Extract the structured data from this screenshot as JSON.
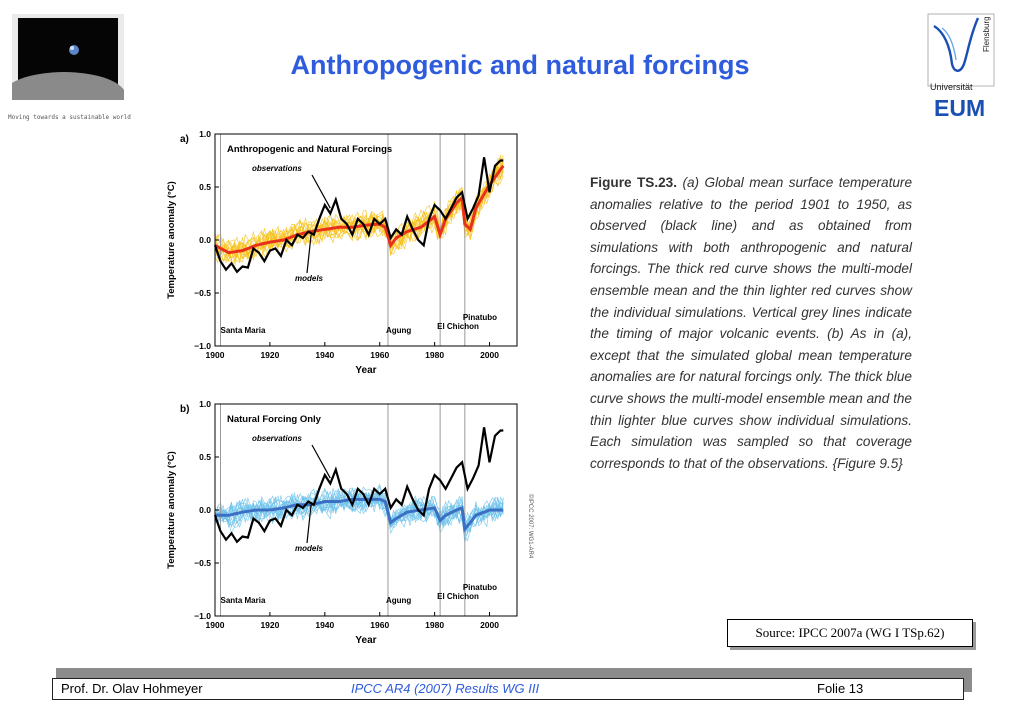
{
  "header": {
    "title": "Anthropogenic and natural forcings",
    "tagline": "Moving towards a sustainable world",
    "logo_text_1": "Universität",
    "logo_text_2": "Flensburg",
    "logo_text_3": "EUM"
  },
  "caption": {
    "lead": "Figure TS.23.",
    "body": " (a) Global mean surface temperature anomalies relative to the period 1901 to 1950, as observed (black line) and as obtained from simulations with both anthropogenic and natural forcings. The thick red curve shows the multi-model ensemble mean and the thin lighter red curves show the individual simulations. Vertical grey lines indicate the timing of major volcanic events. (b) As in (a), except that the simulated global mean temperature anomalies are for natural forcings only. The thick blue curve shows the multi-model ensemble mean and the thin lighter blue curves show individual simulations. Each simulation was sampled so that coverage corresponds to that of the observations. {Figure 9.5}"
  },
  "source": "Source: IPCC 2007a (WG I TSp.62)",
  "footer": {
    "left": "Prof. Dr. Olav Hohmeyer",
    "middle": "IPCC AR4 (2007) Results WG III",
    "right": "Folie 13"
  },
  "colors": {
    "title": "#2e5cdc",
    "observations": "#000000",
    "anthro_mean": "#e8311a",
    "anthro_models": "#f6c21c",
    "natural_mean": "#3a6fc4",
    "natural_models": "#6ec2ea",
    "volcano_line": "#9a9a9a"
  },
  "chart_data": [
    {
      "type": "line",
      "panel_label": "a)",
      "title": "Anthropogenic and Natural Forcings",
      "xlabel": "Year",
      "ylabel": "Temperature anomaly (°C)",
      "xlim": [
        1900,
        2010
      ],
      "ylim": [
        -1.0,
        1.0
      ],
      "xticks": [
        "1900",
        "1920",
        "1940",
        "1960",
        "1980",
        "2000"
      ],
      "yticks": [
        "1.0",
        "0.5",
        "0.0",
        "−0.5",
        "−1.0"
      ],
      "annotations": [
        "observations",
        "models"
      ],
      "volcanoes": [
        {
          "name": "Santa Maria",
          "year": 1902
        },
        {
          "name": "Agung",
          "year": 1963
        },
        {
          "name": "El Chichon",
          "year": 1982
        },
        {
          "name": "Pinatubo",
          "year": 1991
        }
      ],
      "observations": {
        "name": "observations",
        "x": [
          1900,
          1902,
          1904,
          1906,
          1908,
          1910,
          1912,
          1914,
          1916,
          1918,
          1920,
          1922,
          1924,
          1926,
          1928,
          1930,
          1932,
          1934,
          1936,
          1938,
          1940,
          1942,
          1944,
          1946,
          1948,
          1950,
          1952,
          1954,
          1956,
          1958,
          1960,
          1962,
          1964,
          1966,
          1968,
          1970,
          1972,
          1974,
          1976,
          1978,
          1980,
          1982,
          1984,
          1986,
          1988,
          1990,
          1992,
          1994,
          1996,
          1998,
          2000,
          2002,
          2004,
          2005
        ],
        "y": [
          -0.05,
          -0.2,
          -0.28,
          -0.22,
          -0.3,
          -0.25,
          -0.26,
          -0.08,
          -0.12,
          -0.2,
          -0.1,
          -0.08,
          -0.15,
          0.0,
          -0.05,
          0.05,
          0.02,
          0.08,
          0.05,
          0.2,
          0.33,
          0.25,
          0.38,
          0.2,
          0.15,
          0.05,
          0.2,
          0.15,
          0.05,
          0.2,
          0.15,
          0.2,
          0.02,
          0.1,
          0.05,
          0.22,
          0.1,
          0.0,
          -0.05,
          0.2,
          0.33,
          0.28,
          0.2,
          0.3,
          0.4,
          0.45,
          0.2,
          0.3,
          0.42,
          0.78,
          0.45,
          0.7,
          0.75,
          0.75
        ]
      },
      "series": [
        {
          "name": "models",
          "x": [
            1900,
            1905,
            1910,
            1915,
            1920,
            1925,
            1930,
            1935,
            1940,
            1945,
            1950,
            1955,
            1960,
            1962,
            1964,
            1966,
            1970,
            1975,
            1980,
            1982,
            1984,
            1988,
            1990,
            1991,
            1993,
            1995,
            2000,
            2005
          ],
          "y": [
            -0.05,
            -0.12,
            -0.1,
            -0.05,
            -0.02,
            0.0,
            0.05,
            0.08,
            0.1,
            0.12,
            0.12,
            0.14,
            0.15,
            0.12,
            -0.05,
            0.02,
            0.08,
            0.12,
            0.22,
            0.05,
            0.2,
            0.35,
            0.4,
            0.15,
            0.1,
            0.3,
            0.52,
            0.7
          ]
        }
      ]
    },
    {
      "type": "line",
      "panel_label": "b)",
      "title": "Natural Forcing Only",
      "xlabel": "Year",
      "ylabel": "Temperature anomaly (°C)",
      "xlim": [
        1900,
        2010
      ],
      "ylim": [
        -1.0,
        1.0
      ],
      "xticks": [
        "1900",
        "1920",
        "1940",
        "1960",
        "1980",
        "2000"
      ],
      "yticks": [
        "1.0",
        "0.5",
        "0.0",
        "−0.5",
        "−1.0"
      ],
      "annotations": [
        "observations",
        "models"
      ],
      "watermark": "©IPCC 2007: WG1-AR4",
      "volcanoes": [
        {
          "name": "Santa Maria",
          "year": 1902
        },
        {
          "name": "Agung",
          "year": 1963
        },
        {
          "name": "El Chichon",
          "year": 1982
        },
        {
          "name": "Pinatubo",
          "year": 1991
        }
      ],
      "observations": {
        "name": "observations",
        "x": [
          1900,
          1902,
          1904,
          1906,
          1908,
          1910,
          1912,
          1914,
          1916,
          1918,
          1920,
          1922,
          1924,
          1926,
          1928,
          1930,
          1932,
          1934,
          1936,
          1938,
          1940,
          1942,
          1944,
          1946,
          1948,
          1950,
          1952,
          1954,
          1956,
          1958,
          1960,
          1962,
          1964,
          1966,
          1968,
          1970,
          1972,
          1974,
          1976,
          1978,
          1980,
          1982,
          1984,
          1986,
          1988,
          1990,
          1992,
          1994,
          1996,
          1998,
          2000,
          2002,
          2004,
          2005
        ],
        "y": [
          -0.05,
          -0.2,
          -0.28,
          -0.22,
          -0.3,
          -0.25,
          -0.26,
          -0.08,
          -0.12,
          -0.2,
          -0.1,
          -0.08,
          -0.15,
          0.0,
          -0.05,
          0.05,
          0.02,
          0.08,
          0.05,
          0.2,
          0.33,
          0.25,
          0.38,
          0.2,
          0.15,
          0.05,
          0.2,
          0.15,
          0.05,
          0.2,
          0.15,
          0.2,
          0.02,
          0.1,
          0.05,
          0.22,
          0.1,
          0.0,
          -0.05,
          0.2,
          0.33,
          0.28,
          0.2,
          0.3,
          0.4,
          0.45,
          0.2,
          0.3,
          0.42,
          0.78,
          0.45,
          0.7,
          0.75,
          0.75
        ]
      },
      "series": [
        {
          "name": "models",
          "x": [
            1900,
            1905,
            1910,
            1915,
            1920,
            1925,
            1930,
            1935,
            1940,
            1945,
            1950,
            1955,
            1960,
            1962,
            1964,
            1966,
            1970,
            1975,
            1980,
            1982,
            1984,
            1988,
            1990,
            1991,
            1993,
            1995,
            2000,
            2005
          ],
          "y": [
            -0.05,
            -0.05,
            -0.02,
            0.0,
            0.0,
            0.02,
            0.05,
            0.05,
            0.08,
            0.08,
            0.1,
            0.1,
            0.1,
            0.08,
            -0.12,
            -0.08,
            -0.02,
            0.0,
            0.02,
            -0.1,
            -0.05,
            0.0,
            0.02,
            -0.18,
            -0.12,
            -0.05,
            0.0,
            0.0
          ]
        }
      ]
    }
  ]
}
